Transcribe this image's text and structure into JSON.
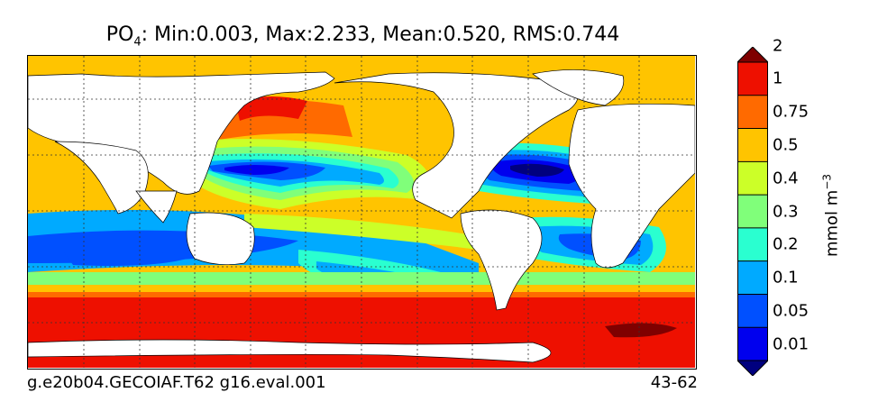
{
  "title": {
    "variable": "PO",
    "subscript": "4",
    "stats": ": Min:0.003, Max:2.233, Mean:0.520, RMS:0.744"
  },
  "footer": {
    "case_name": "g.e20b04.GECOIAF.T62 g16.eval.001",
    "years": "43-62"
  },
  "colorbar": {
    "unit_base": "mmol m",
    "unit_exponent": "−3",
    "levels": [
      "0.01",
      "0.05",
      "0.1",
      "0.2",
      "0.3",
      "0.4",
      "0.5",
      "0.75",
      "1",
      "2"
    ],
    "colors": [
      "#00007f",
      "#0000ee",
      "#0050ff",
      "#00aaff",
      "#2affd0",
      "#80ff7a",
      "#ccff28",
      "#ffc400",
      "#ff6a00",
      "#ee1000",
      "#7f0000"
    ]
  },
  "map": {
    "land_color": "#ffffff",
    "land_label": "",
    "grid": "dotted"
  }
}
